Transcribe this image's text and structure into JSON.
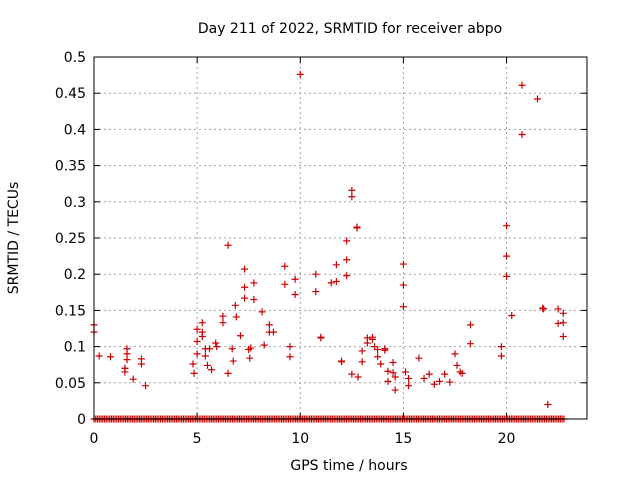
{
  "chart_data": {
    "type": "scatter",
    "title": "Day 211 of 2022, SRMTID for receiver abpo",
    "xlabel": "GPS time / hours",
    "ylabel": "SRMTID / TECUs",
    "xlim": [
      0,
      23.9
    ],
    "ylim": [
      0,
      0.5
    ],
    "x_ticks": [
      "0",
      "5",
      "10",
      "15",
      "20"
    ],
    "x_tick_values": [
      0,
      5,
      10,
      15,
      20
    ],
    "y_ticks": [
      "0",
      "0.05",
      "0.1",
      "0.15",
      "0.2",
      "0.25",
      "0.3",
      "0.35",
      "0.4",
      "0.45",
      "0.5"
    ],
    "y_tick_values": [
      0,
      0.05,
      0.1,
      0.15,
      0.2,
      0.25,
      0.3,
      0.35,
      0.4,
      0.45,
      0.5
    ],
    "grid": true,
    "marker": "plus",
    "color": "#cc0000",
    "zero_baseline_x_range": [
      0,
      22.8
    ],
    "zero_baseline_step": 0.085,
    "series": [
      {
        "name": "SRMTID",
        "points": [
          [
            0.0,
            0.13
          ],
          [
            0.0,
            0.12
          ],
          [
            0.25,
            0.087
          ],
          [
            0.8,
            0.086
          ],
          [
            1.5,
            0.07
          ],
          [
            1.5,
            0.065
          ],
          [
            1.5,
            0.07
          ],
          [
            1.6,
            0.097
          ],
          [
            1.6,
            0.09
          ],
          [
            1.6,
            0.082
          ],
          [
            1.9,
            0.055
          ],
          [
            2.3,
            0.083
          ],
          [
            2.3,
            0.076
          ],
          [
            2.5,
            0.046
          ],
          [
            4.8,
            0.076
          ],
          [
            4.85,
            0.063
          ],
          [
            5.0,
            0.124
          ],
          [
            5.0,
            0.107
          ],
          [
            5.0,
            0.09
          ],
          [
            5.25,
            0.133
          ],
          [
            5.25,
            0.12
          ],
          [
            5.25,
            0.114
          ],
          [
            5.4,
            0.097
          ],
          [
            5.4,
            0.087
          ],
          [
            5.5,
            0.074
          ],
          [
            5.6,
            0.097
          ],
          [
            5.7,
            0.068
          ],
          [
            5.9,
            0.105
          ],
          [
            5.95,
            0.1
          ],
          [
            6.25,
            0.142
          ],
          [
            6.25,
            0.133
          ],
          [
            6.5,
            0.24
          ],
          [
            6.5,
            0.063
          ],
          [
            6.7,
            0.097
          ],
          [
            6.75,
            0.08
          ],
          [
            6.85,
            0.157
          ],
          [
            6.9,
            0.141
          ],
          [
            7.1,
            0.115
          ],
          [
            7.3,
            0.207
          ],
          [
            7.3,
            0.182
          ],
          [
            7.3,
            0.167
          ],
          [
            7.5,
            0.096
          ],
          [
            7.55,
            0.084
          ],
          [
            7.6,
            0.098
          ],
          [
            7.75,
            0.188
          ],
          [
            7.75,
            0.165
          ],
          [
            8.15,
            0.148
          ],
          [
            8.25,
            0.102
          ],
          [
            8.5,
            0.13
          ],
          [
            8.5,
            0.12
          ],
          [
            8.7,
            0.12
          ],
          [
            9.25,
            0.211
          ],
          [
            9.25,
            0.186
          ],
          [
            9.5,
            0.1
          ],
          [
            9.5,
            0.086
          ],
          [
            9.75,
            0.193
          ],
          [
            9.75,
            0.172
          ],
          [
            10.0,
            0.476
          ],
          [
            10.75,
            0.2
          ],
          [
            10.75,
            0.176
          ],
          [
            11.0,
            0.113
          ],
          [
            11.0,
            0.112
          ],
          [
            11.5,
            0.188
          ],
          [
            11.75,
            0.213
          ],
          [
            11.75,
            0.19
          ],
          [
            12.0,
            0.08
          ],
          [
            12.0,
            0.079
          ],
          [
            12.25,
            0.246
          ],
          [
            12.25,
            0.22
          ],
          [
            12.25,
            0.198
          ],
          [
            12.5,
            0.316
          ],
          [
            12.5,
            0.307
          ],
          [
            12.5,
            0.062
          ],
          [
            12.75,
            0.265
          ],
          [
            12.75,
            0.264
          ],
          [
            12.8,
            0.058
          ],
          [
            13.0,
            0.094
          ],
          [
            13.0,
            0.079
          ],
          [
            13.25,
            0.112
          ],
          [
            13.25,
            0.105
          ],
          [
            13.5,
            0.113
          ],
          [
            13.5,
            0.11
          ],
          [
            13.6,
            0.1
          ],
          [
            13.75,
            0.096
          ],
          [
            13.75,
            0.086
          ],
          [
            13.9,
            0.076
          ],
          [
            14.1,
            0.097
          ],
          [
            14.1,
            0.095
          ],
          [
            14.25,
            0.066
          ],
          [
            14.25,
            0.052
          ],
          [
            14.5,
            0.078
          ],
          [
            14.5,
            0.064
          ],
          [
            14.6,
            0.058
          ],
          [
            14.6,
            0.04
          ],
          [
            15.0,
            0.214
          ],
          [
            15.0,
            0.185
          ],
          [
            15.0,
            0.155
          ],
          [
            15.1,
            0.065
          ],
          [
            15.25,
            0.056
          ],
          [
            15.25,
            0.046
          ],
          [
            15.75,
            0.084
          ],
          [
            16.0,
            0.056
          ],
          [
            16.25,
            0.062
          ],
          [
            16.5,
            0.048
          ],
          [
            16.75,
            0.052
          ],
          [
            17.0,
            0.062
          ],
          [
            17.25,
            0.051
          ],
          [
            17.5,
            0.09
          ],
          [
            17.6,
            0.074
          ],
          [
            17.75,
            0.065
          ],
          [
            17.85,
            0.063
          ],
          [
            18.25,
            0.13
          ],
          [
            18.25,
            0.104
          ],
          [
            19.75,
            0.1
          ],
          [
            19.75,
            0.087
          ],
          [
            20.0,
            0.267
          ],
          [
            20.0,
            0.225
          ],
          [
            20.0,
            0.197
          ],
          [
            20.25,
            0.143
          ],
          [
            20.75,
            0.461
          ],
          [
            20.75,
            0.393
          ],
          [
            21.5,
            0.442
          ],
          [
            21.75,
            0.153
          ],
          [
            21.8,
            0.152
          ],
          [
            22.0,
            0.02
          ],
          [
            22.5,
            0.152
          ],
          [
            22.5,
            0.132
          ],
          [
            22.75,
            0.146
          ],
          [
            22.75,
            0.133
          ],
          [
            22.75,
            0.114
          ]
        ]
      }
    ]
  }
}
